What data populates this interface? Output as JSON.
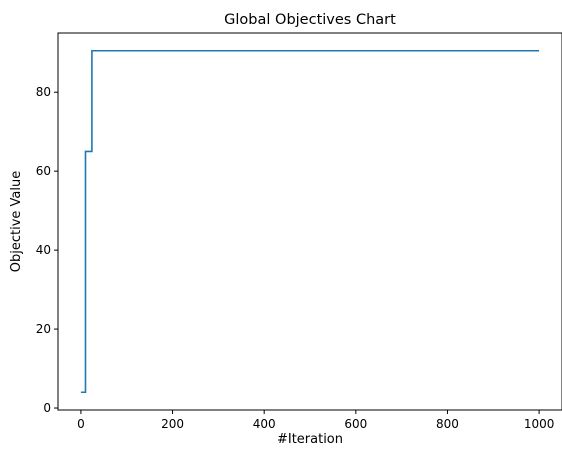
{
  "chart_data": {
    "type": "line",
    "title": "Global Objectives Chart",
    "xlabel": "#Iteration",
    "ylabel": "Objective Value",
    "xlim": [
      -50,
      1050
    ],
    "ylim": [
      -0.5,
      95
    ],
    "xticks": [
      0,
      200,
      400,
      600,
      800,
      1000
    ],
    "yticks": [
      0,
      20,
      40,
      60,
      80
    ],
    "grid": false,
    "series": [
      {
        "line_color": "#1f77b4",
        "step": true,
        "x": [
          0,
          10,
          10,
          24,
          24,
          1000
        ],
        "y": [
          4,
          4,
          65,
          65,
          90.5,
          90.5
        ]
      }
    ]
  }
}
